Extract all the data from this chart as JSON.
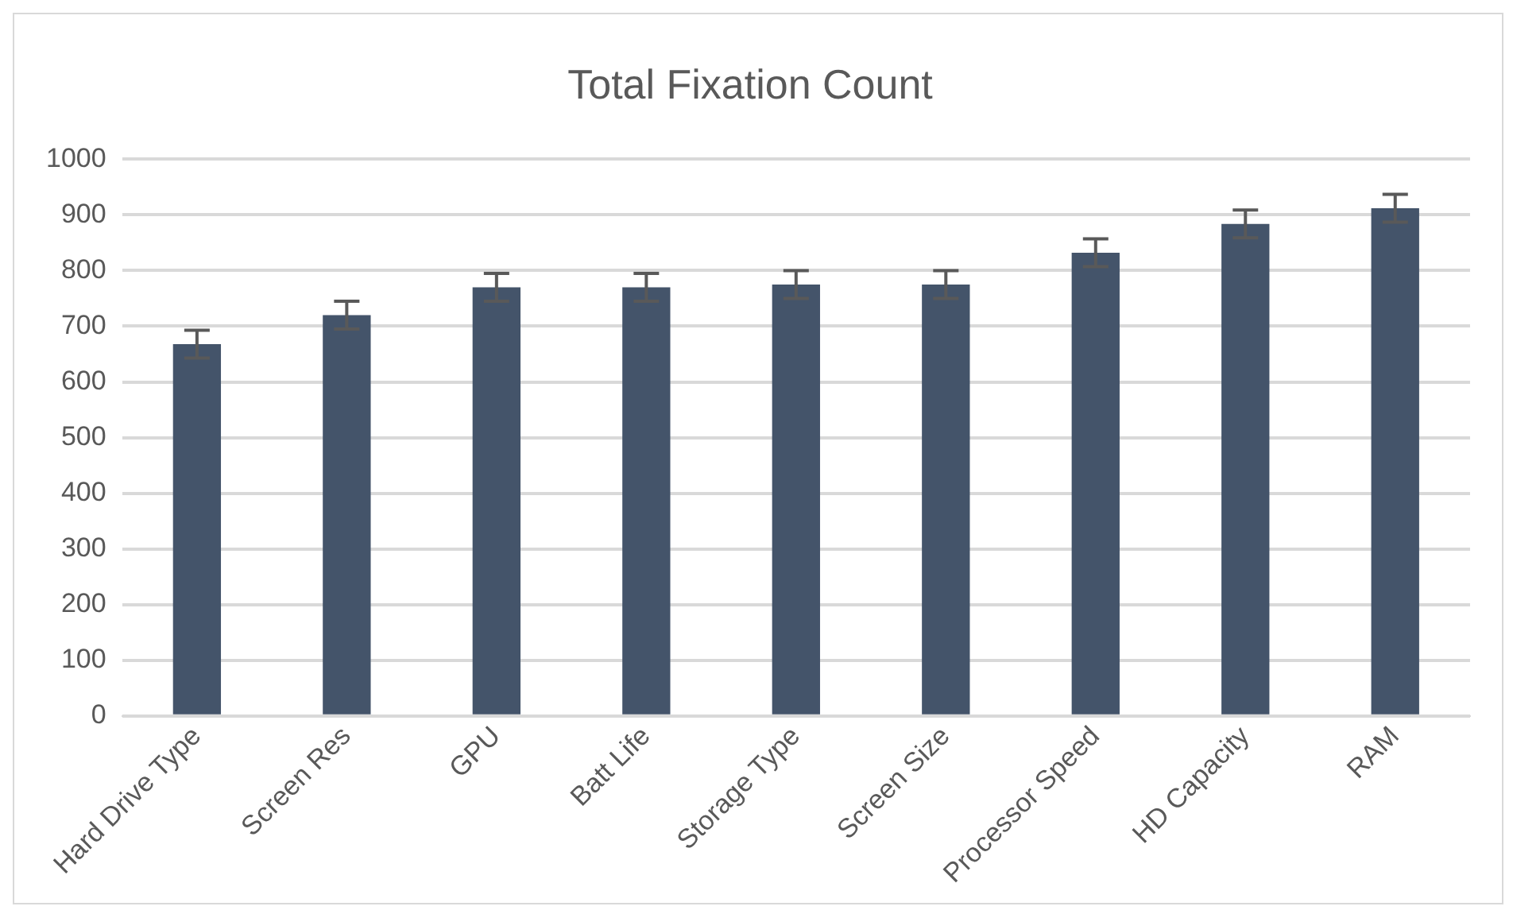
{
  "chart_data": {
    "type": "bar",
    "title": "Total Fixation Count",
    "categories": [
      "Hard Drive Type",
      "Screen Res",
      "GPU",
      "Batt Life",
      "Storage Type",
      "Screen Size",
      "Processor Speed",
      "HD Capacity",
      "RAM"
    ],
    "values": [
      668,
      720,
      770,
      770,
      775,
      775,
      832,
      884,
      912
    ],
    "errors": [
      25,
      25,
      25,
      25,
      25,
      25,
      25,
      25,
      25
    ],
    "color": "#44546a",
    "ylim": [
      0,
      1000
    ],
    "yticks": [
      0,
      100,
      200,
      300,
      400,
      500,
      600,
      700,
      800,
      900,
      1000
    ],
    "grid": "y",
    "legend": false
  }
}
